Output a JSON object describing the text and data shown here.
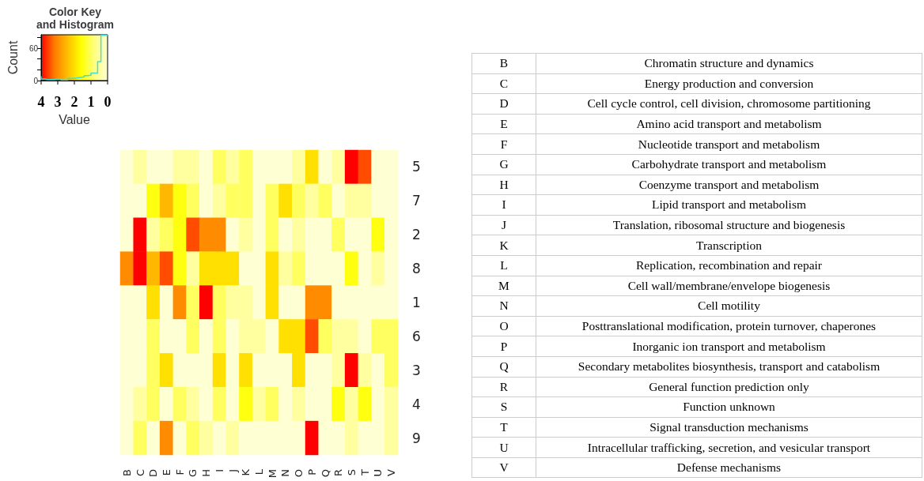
{
  "chart_data": [
    {
      "type": "step",
      "title": "Color Key\nand Histogram",
      "ylabel": "Count",
      "tick_labels": "y",
      "ylim": [
        0,
        85
      ],
      "yticks": [
        0,
        {
          "value": 20,
          "label": null
        },
        {
          "value": 40,
          "label": null
        },
        60,
        {
          "value": 80,
          "label": null
        }
      ],
      "categories": [
        null,
        null,
        null,
        null,
        null,
        null,
        null,
        null,
        null,
        null,
        null,
        null,
        null,
        null,
        null,
        null,
        null,
        null,
        null,
        null,
        null
      ],
      "values": [
        8,
        3,
        2,
        2,
        2,
        3,
        3,
        1,
        1,
        4,
        4,
        5,
        6,
        7,
        9,
        10,
        14,
        14,
        35,
        84,
        84
      ],
      "color": "#40e0d0"
    },
    {
      "type": "heatmap",
      "categories": [
        "B",
        "C",
        "D",
        "E",
        "F",
        "G",
        "H",
        "I",
        "J",
        "K",
        "L",
        "M",
        "N",
        "O",
        "P",
        "Q",
        "R",
        "S",
        "T",
        "U",
        "V"
      ],
      "y_categories": [
        "5",
        "7",
        "2",
        "8",
        "1",
        "6",
        "3",
        "4",
        "9"
      ],
      "clim": [
        4,
        0
      ],
      "cticks": [
        4,
        3,
        2,
        1,
        0
      ],
      "clabel": "Value",
      "cells": [
        [
          0,
          0.5,
          0,
          0,
          0.5,
          0.5,
          0,
          1,
          0.5,
          1,
          0,
          0,
          0,
          0.5,
          2,
          0,
          0.5,
          4,
          3.5,
          0,
          0
        ],
        [
          0,
          0,
          1.5,
          2.5,
          1.5,
          1,
          0,
          0.5,
          1,
          1,
          0,
          1,
          2,
          1,
          0.5,
          1,
          0,
          0.5,
          0.5,
          0,
          0
        ],
        [
          0,
          4,
          0.5,
          1,
          1.5,
          3.5,
          3,
          3,
          0,
          0.5,
          0,
          1,
          0,
          0.5,
          0,
          0,
          1,
          0,
          0,
          1.5,
          0
        ],
        [
          3,
          4,
          2.5,
          3.5,
          1.5,
          0.5,
          2,
          2,
          2,
          0,
          0,
          2,
          0.5,
          1,
          0,
          0,
          0,
          1.5,
          0,
          0.5,
          0
        ],
        [
          0,
          0,
          2,
          0,
          3,
          1,
          4,
          1,
          0.5,
          0.5,
          0,
          2,
          0,
          0,
          3,
          3,
          0,
          0,
          0,
          0,
          0
        ],
        [
          0,
          0,
          1,
          0,
          0,
          1,
          0,
          1,
          0,
          0.5,
          0.5,
          0,
          2,
          2,
          3.5,
          1,
          0.5,
          0.5,
          0,
          1,
          1
        ],
        [
          0,
          0,
          1,
          2,
          0,
          0,
          0,
          2,
          0,
          2,
          0,
          0,
          0,
          2,
          0,
          0,
          0.5,
          4,
          0.5,
          0,
          1
        ],
        [
          0,
          0.5,
          1,
          0,
          1,
          0.5,
          0,
          1,
          0,
          1.5,
          0.5,
          1,
          0,
          0.5,
          0,
          0,
          1.5,
          0.5,
          1.5,
          0,
          0.5
        ],
        [
          0,
          1,
          0,
          3,
          0,
          1,
          0.5,
          0,
          0.5,
          0,
          0,
          0,
          0,
          0,
          4,
          0,
          0,
          0.5,
          0,
          0,
          0.5
        ]
      ]
    },
    {
      "type": "other",
      "categories": [
        "B",
        "C",
        "D",
        "E",
        "F",
        "G",
        "H",
        "I",
        "J",
        "K",
        "L",
        "M",
        "N",
        "O",
        "P",
        "Q",
        "R",
        "S",
        "T",
        "U",
        "V"
      ],
      "annotations": [
        "Chromatin structure and dynamics",
        "Energy production and conversion",
        "Cell cycle control, cell division, chromosome partitioning",
        "Amino acid transport and metabolism",
        "Nucleotide transport and metabolism",
        "Carbohydrate transport and metabolism",
        "Coenzyme transport and metabolism",
        "Lipid transport and metabolism",
        "Translation, ribosomal structure and biogenesis",
        "Transcription",
        "Replication, recombination and repair",
        "Cell wall/membrane/envelope biogenesis",
        "Cell motility",
        "Posttranslational modification, protein turnover, chaperones",
        "Inorganic ion transport and metabolism",
        "Secondary metabolites biosynthesis, transport and catabolism",
        "General function prediction only",
        "Function unknown",
        "Signal transduction mechanisms",
        "Intracellular trafficking, secretion, and vesicular transport",
        "Defense mechanisms"
      ]
    }
  ]
}
